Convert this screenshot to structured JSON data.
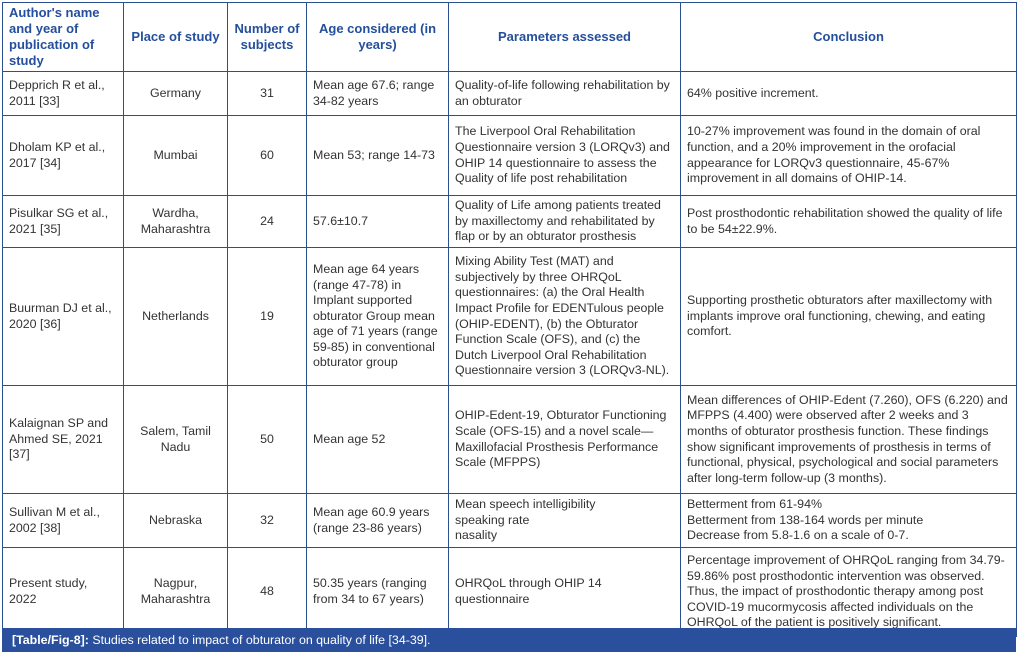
{
  "headers": [
    "Author's name and year of publication of study",
    "Place of study",
    "Number of subjects",
    "Age considered (in years)",
    "Parameters assessed",
    "Conclusion"
  ],
  "rows": [
    {
      "author": "Depprich R et al., 2011 [33]",
      "place": "Germany",
      "n": "31",
      "age": "Mean age 67.6; range 34-82 years",
      "params": "Quality-of-life following rehabilitation by an obturator",
      "conclusion": "64% positive increment."
    },
    {
      "author": "Dholam KP et al., 2017 [34]",
      "place": "Mumbai",
      "n": "60",
      "age": "Mean 53; range 14-73",
      "params": "The Liverpool Oral Rehabilitation Questionnaire version 3 (LORQv3) and OHIP 14 questionnaire to assess the Quality of life post rehabilitation",
      "conclusion": "10-27% improvement was found in the domain of oral function, and a 20% improvement in the orofacial appearance for LORQv3 questionnaire, 45-67% improvement in all domains of OHIP-14."
    },
    {
      "author": "Pisulkar SG et al., 2021 [35]",
      "place": "Wardha, Maharashtra",
      "n": "24",
      "age": "57.6±10.7",
      "params": "Quality of Life among patients treated by maxillectomy and rehabilitated by flap or by an obturator prosthesis",
      "conclusion": "Post prosthodontic rehabilitation showed the quality of life to be 54±22.9%."
    },
    {
      "author": "Buurman DJ et al., 2020 [36]",
      "place": "Netherlands",
      "n": "19",
      "age": "Mean age 64 years (range 47-78) in Implant supported obturator Group  mean age of 71 years (range 59-85) in conventional obturator group",
      "params": "Mixing Ability Test (MAT) and subjectively by three OHRQoL questionnaires: (a) the Oral Health Impact Profile for EDENTulous people (OHIP-EDENT), (b) the Obturator Function Scale (OFS), and (c) the Dutch Liverpool Oral Rehabilitation Questionnaire version 3 (LORQv3-NL).",
      "conclusion": "Supporting prosthetic obturators after maxillectomy with implants improve oral functioning, chewing, and eating comfort."
    },
    {
      "author": "Kalaignan SP and Ahmed SE, 2021 [37]",
      "place": "Salem, Tamil Nadu",
      "n": "50",
      "age": "Mean age 52",
      "params": "OHIP-Edent-19, Obturator Functioning Scale (OFS-15) and a novel scale—Maxillofacial Prosthesis Performance Scale (MFPPS)",
      "conclusion": "Mean differences of OHIP-Edent (7.260), OFS (6.220) and MFPPS (4.400) were observed after 2 weeks and 3 months of obturator prosthesis function. These findings show significant improvements of prosthesis in terms of functional, physical, psychological and social parameters after long-term follow-up (3 months)."
    },
    {
      "author": "Sullivan M et al., 2002 [38]",
      "place": "Nebraska",
      "n": "32",
      "age": "Mean age 60.9 years (range 23-86 years)",
      "params": "Mean speech intelligibility\nspeaking rate\nnasality",
      "conclusion": "Betterment from 61-94%\nBetterment from 138-164 words per minute\nDecrease from 5.8-1.6 on a scale of 0-7."
    },
    {
      "author": "Present study, 2022",
      "place": "Nagpur, Maharashtra",
      "n": "48",
      "age": "50.35 years (ranging from 34 to 67 years)",
      "params": "OHRQoL through OHIP 14 questionnaire",
      "conclusion": "Percentage improvement of OHRQoL ranging from 34.79-59.86% post prosthodontic intervention was observed. Thus, the impact of prosthodontic therapy among post COVID-19 mucormycosis affected individuals on the OHRQoL of the patient is positively significant."
    }
  ],
  "caption": {
    "label": "[Table/Fig-8]:",
    "text": " Studies related to impact of obturator on quality of life [34-39]."
  }
}
